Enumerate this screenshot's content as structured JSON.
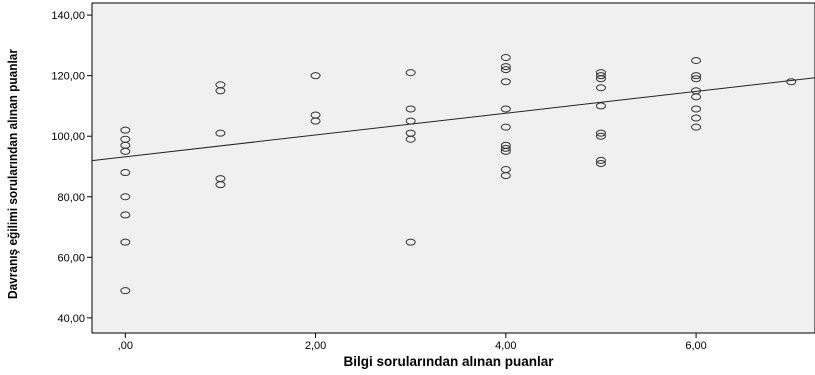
{
  "chart_data": {
    "type": "scatter",
    "title": "",
    "xlabel": "Bilgi sorularından alınan puanlar",
    "ylabel": "Davranış eğilimi sorularından alınan puanlar",
    "xlim": [
      -0.35,
      7.25
    ],
    "ylim": [
      35,
      144
    ],
    "xticks": [
      0,
      2,
      4,
      6
    ],
    "xtick_labels": [
      ",00",
      "2,00",
      "4,00",
      "6,00"
    ],
    "yticks": [
      40,
      60,
      80,
      100,
      120,
      140
    ],
    "ytick_labels": [
      "40,00",
      "60,00",
      "80,00",
      "100,00",
      "120,00",
      "140,00"
    ],
    "grid": false,
    "legend": "none",
    "colors": {
      "plot_background": "#f0f0f0",
      "marker_stroke": "#333333",
      "line": "#222222"
    },
    "fit_line": {
      "intercept": 93.2,
      "slope": 3.6
    },
    "points": [
      {
        "x": 0,
        "y": 102
      },
      {
        "x": 0,
        "y": 99
      },
      {
        "x": 0,
        "y": 97
      },
      {
        "x": 0,
        "y": 95
      },
      {
        "x": 0,
        "y": 88
      },
      {
        "x": 0,
        "y": 80
      },
      {
        "x": 0,
        "y": 74
      },
      {
        "x": 0,
        "y": 65
      },
      {
        "x": 0,
        "y": 49
      },
      {
        "x": 1,
        "y": 117
      },
      {
        "x": 1,
        "y": 115
      },
      {
        "x": 1,
        "y": 101
      },
      {
        "x": 1,
        "y": 86
      },
      {
        "x": 1,
        "y": 84
      },
      {
        "x": 2,
        "y": 120
      },
      {
        "x": 2,
        "y": 107
      },
      {
        "x": 2,
        "y": 105
      },
      {
        "x": 3,
        "y": 121
      },
      {
        "x": 3,
        "y": 109
      },
      {
        "x": 3,
        "y": 105
      },
      {
        "x": 3,
        "y": 101
      },
      {
        "x": 3,
        "y": 99
      },
      {
        "x": 3,
        "y": 65
      },
      {
        "x": 4,
        "y": 126
      },
      {
        "x": 4,
        "y": 123
      },
      {
        "x": 4,
        "y": 122
      },
      {
        "x": 4,
        "y": 118
      },
      {
        "x": 4,
        "y": 109
      },
      {
        "x": 4,
        "y": 103
      },
      {
        "x": 4,
        "y": 97
      },
      {
        "x": 4,
        "y": 96
      },
      {
        "x": 4,
        "y": 95
      },
      {
        "x": 4,
        "y": 89
      },
      {
        "x": 4,
        "y": 87
      },
      {
        "x": 5,
        "y": 121
      },
      {
        "x": 5,
        "y": 120
      },
      {
        "x": 5,
        "y": 119
      },
      {
        "x": 5,
        "y": 116
      },
      {
        "x": 5,
        "y": 110
      },
      {
        "x": 5,
        "y": 101
      },
      {
        "x": 5,
        "y": 100
      },
      {
        "x": 5,
        "y": 92
      },
      {
        "x": 5,
        "y": 91
      },
      {
        "x": 6,
        "y": 125
      },
      {
        "x": 6,
        "y": 120
      },
      {
        "x": 6,
        "y": 119
      },
      {
        "x": 6,
        "y": 115
      },
      {
        "x": 6,
        "y": 113
      },
      {
        "x": 6,
        "y": 109
      },
      {
        "x": 6,
        "y": 106
      },
      {
        "x": 6,
        "y": 103
      },
      {
        "x": 7,
        "y": 118
      }
    ]
  }
}
